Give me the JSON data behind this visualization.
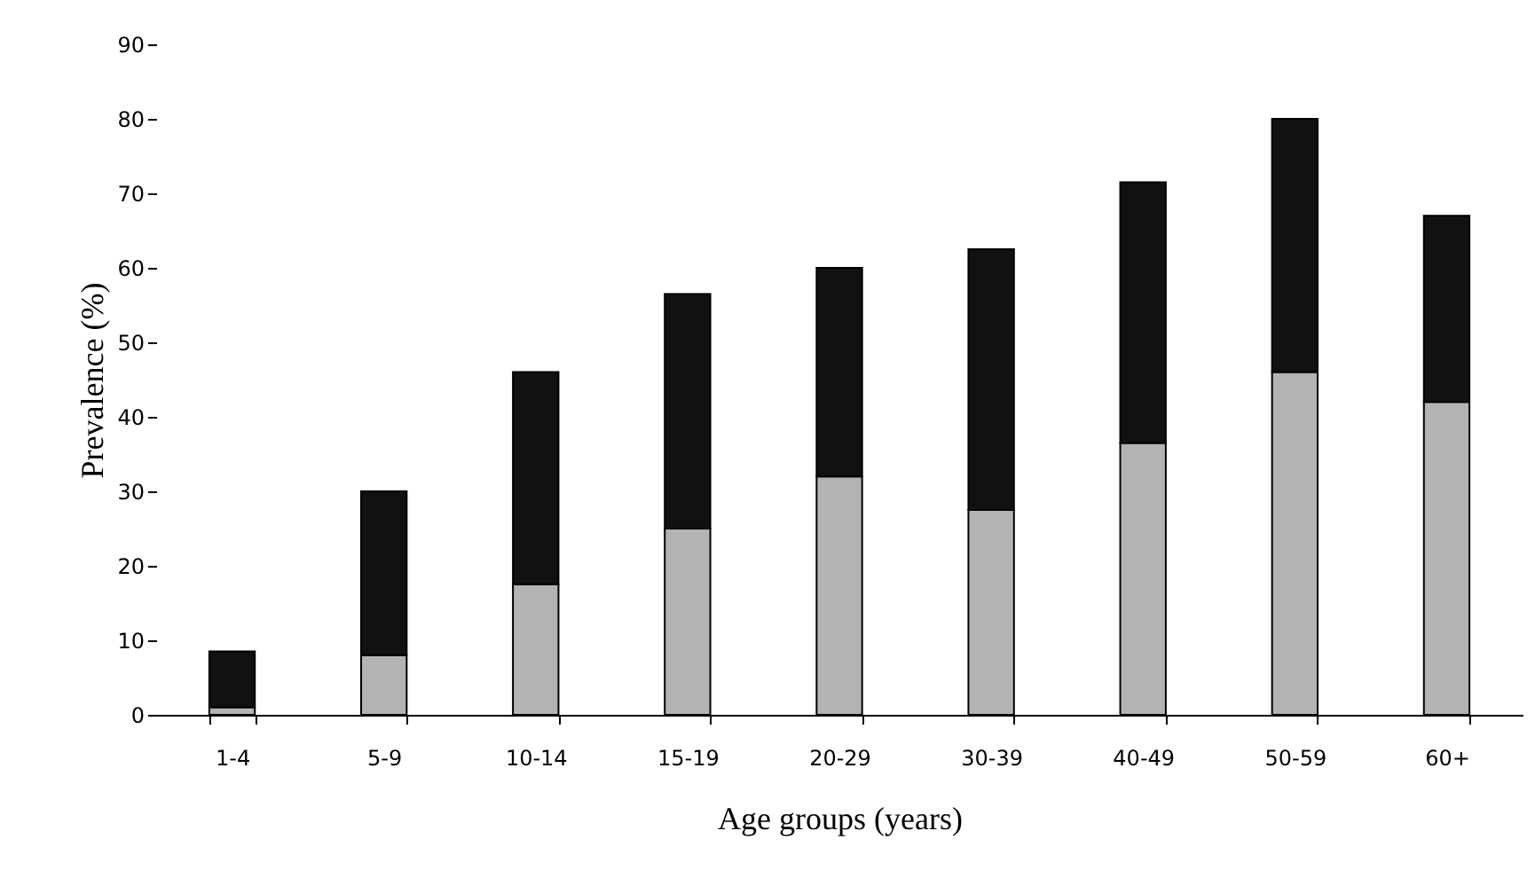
{
  "chart_data": {
    "type": "bar",
    "stacked": true,
    "xlabel": "Age groups (years)",
    "ylabel": "Prevalence (%)",
    "categories": [
      "1-4",
      "5-9",
      "10-14",
      "15-19",
      "20-29",
      "30-39",
      "40-49",
      "50-59",
      "60+"
    ],
    "series": [
      {
        "color": "#b3b3b3",
        "values": [
          1,
          8,
          17.5,
          25,
          32,
          27.5,
          36.5,
          46,
          42
        ]
      },
      {
        "color": "#111111",
        "values": [
          7.5,
          22,
          28.5,
          31.5,
          28,
          35,
          35,
          34,
          25
        ]
      }
    ],
    "ylim": [
      0,
      90
    ],
    "yticks": [
      0,
      10,
      20,
      30,
      40,
      50,
      60,
      70,
      80,
      90
    ],
    "grid": false,
    "legend": false
  }
}
